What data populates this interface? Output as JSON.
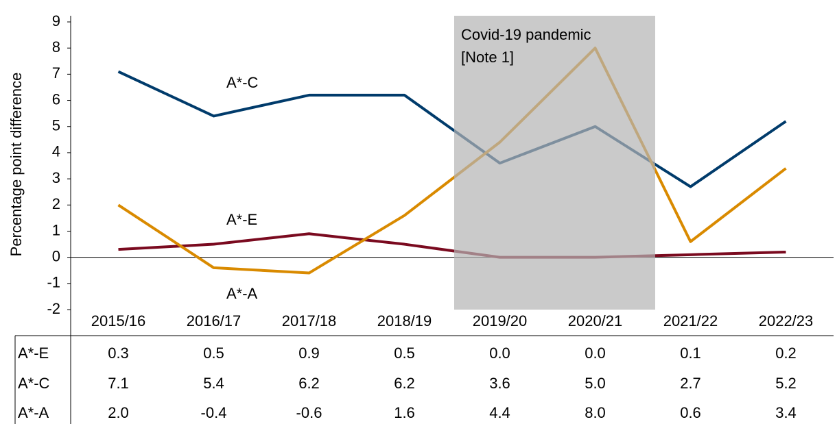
{
  "chart_data": {
    "type": "line",
    "ylabel": "Percentage point difference",
    "annotation": [
      "Covid-19 pandemic",
      "[Note 1]"
    ],
    "categories": [
      "2015/16",
      "2016/17",
      "2017/18",
      "2018/19",
      "2019/20",
      "2020/21",
      "2021/22",
      "2022/23"
    ],
    "series": [
      {
        "name": "A*-E",
        "color": "#7a0a1f",
        "values": [
          0.3,
          0.5,
          0.9,
          0.5,
          0.0,
          0.0,
          0.1,
          0.2
        ],
        "value_labels": [
          "0.3",
          "0.5",
          "0.9",
          "0.5",
          "0.0",
          "0.0",
          "0.1",
          "0.2"
        ]
      },
      {
        "name": "A*-C",
        "color": "#003b6b",
        "values": [
          7.1,
          5.4,
          6.2,
          6.2,
          3.6,
          5.0,
          2.7,
          5.2
        ],
        "value_labels": [
          "7.1",
          "5.4",
          "6.2",
          "6.2",
          "3.6",
          "5.0",
          "2.7",
          "5.2"
        ]
      },
      {
        "name": "A*-A",
        "color": "#d98a00",
        "values": [
          2.0,
          -0.4,
          -0.6,
          1.6,
          4.4,
          8.0,
          0.6,
          3.4
        ],
        "value_labels": [
          "2.0",
          "-0.4",
          "-0.6",
          "1.6",
          "4.4",
          "8.0",
          "0.6",
          "3.4"
        ]
      }
    ],
    "ylim": [
      -2,
      9
    ],
    "yticks": [
      -2,
      -1,
      0,
      1,
      2,
      3,
      4,
      5,
      6,
      7,
      8,
      9
    ],
    "grid": false
  }
}
